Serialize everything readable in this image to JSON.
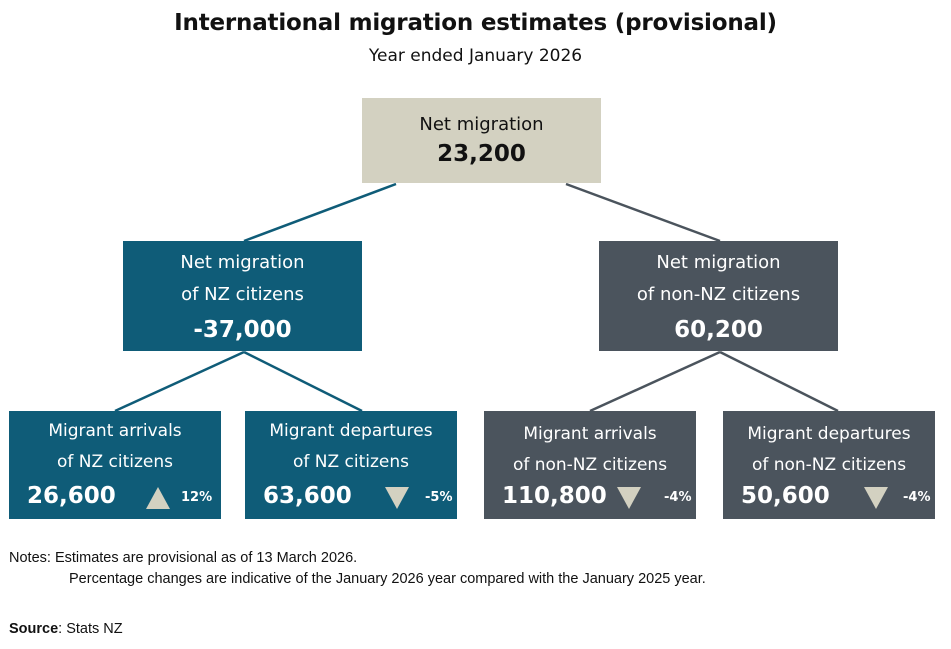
{
  "title": "International migration estimates (provisional)",
  "subtitle": "Year ended January 2026",
  "colors": {
    "teal": "#0f5c78",
    "slate": "#4b545d",
    "beige": "#d3d1c1"
  },
  "top_node": {
    "label": "Net migration",
    "value": "23,200"
  },
  "nz_node": {
    "label_line1": "Net migration",
    "label_line2": "of NZ citizens",
    "value": "-37,000"
  },
  "non_nz_node": {
    "label_line1": "Net migration",
    "label_line2": "of non-NZ citizens",
    "value": "60,200"
  },
  "leaves": [
    {
      "label_line1": "Migrant arrivals",
      "label_line2": "of NZ citizens",
      "value": "26,600",
      "direction": "up-arrow-icon",
      "change": "12%"
    },
    {
      "label_line1": "Migrant departures",
      "label_line2": "of NZ citizens",
      "value": "63,600",
      "direction": "down-arrow-icon",
      "change": "-5%"
    },
    {
      "label_line1": "Migrant arrivals",
      "label_line2": "of non-NZ citizens",
      "value": "110,800",
      "direction": "down-arrow-icon",
      "change": "-4%"
    },
    {
      "label_line1": "Migrant departures",
      "label_line2": "of non-NZ citizens",
      "value": "50,600",
      "direction": "down-arrow-icon",
      "change": "-4%"
    }
  ],
  "notes": {
    "prefix": "Notes:",
    "line1": "Estimates are provisional as of 13 March 2026.",
    "line2": "Percentage changes are indicative of the January 2026 year compared with the January 2025 year."
  },
  "source": {
    "label": "Source",
    "value": ": Stats NZ"
  }
}
